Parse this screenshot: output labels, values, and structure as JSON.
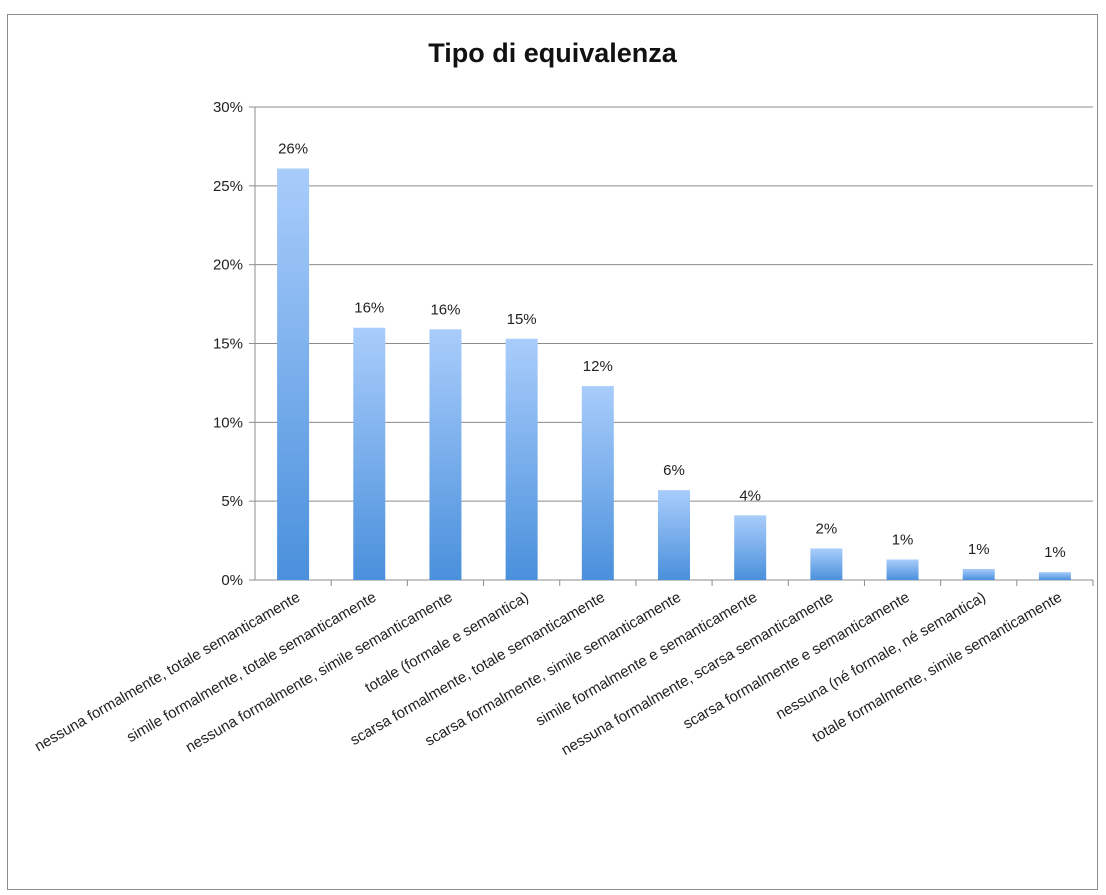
{
  "chart_data": {
    "type": "bar",
    "title": "Tipo di equivalenza",
    "categories": [
      "nessuna formalmente, totale semanticamente",
      "simile formalmente, totale semanticamente",
      "nessuna formalmente, simile semanticamente",
      "totale (formale e semantica)",
      "scarsa formalmente, totale semanticamente",
      "scarsa formalmente, simile semanticamente",
      "simile formalmente e semanticamente",
      "nessuna formalmente, scarsa semanticamente",
      "scarsa formalmente e semanticamente",
      "nessuna (né formale, né semantica)",
      "totale formalmente, simile semanticamente"
    ],
    "values": [
      26.1,
      16.0,
      15.9,
      15.3,
      12.3,
      5.7,
      4.1,
      2.0,
      1.3,
      0.7,
      0.5
    ],
    "data_labels": [
      "26%",
      "16%",
      "16%",
      "15%",
      "12%",
      "6%",
      "4%",
      "2%",
      "1%",
      "1%",
      "1%"
    ],
    "ylim": [
      0,
      30
    ],
    "yticks": [
      0,
      5,
      10,
      15,
      20,
      25,
      30
    ],
    "ytick_labels": [
      "0%",
      "5%",
      "10%",
      "15%",
      "20%",
      "25%",
      "30%"
    ],
    "xlabel": "",
    "ylabel": "",
    "grid": true,
    "legend": "none",
    "colors": {
      "bar_top": "#a9cdfb",
      "bar_bottom": "#4a90dc",
      "grid": "#8c8c8c",
      "axis": "#8c8c8c"
    }
  }
}
